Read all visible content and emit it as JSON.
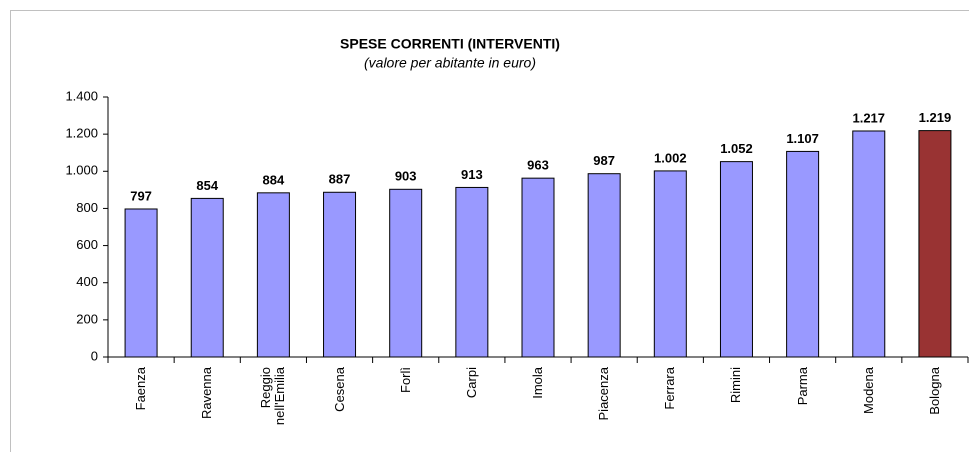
{
  "chart_data": {
    "type": "bar",
    "title": "SPESE CORRENTI (INTERVENTI)",
    "subtitle": "(valore per abitante in euro)",
    "categories": [
      "Faenza",
      "Ravenna",
      "Reggio nell'Emilia",
      "Cesena",
      "Forlì",
      "Carpi",
      "Imola",
      "Piacenza",
      "Ferrara",
      "Rimini",
      "Parma",
      "Modena",
      "Bologna"
    ],
    "values": [
      797,
      854,
      884,
      887,
      903,
      913,
      963,
      987,
      1002,
      1052,
      1107,
      1217,
      1219
    ],
    "value_labels": [
      "797",
      "854",
      "884",
      "887",
      "903",
      "913",
      "963",
      "987",
      "1.002",
      "1.052",
      "1.107",
      "1.217",
      "1.219"
    ],
    "colors": [
      "#9999ff",
      "#9999ff",
      "#9999ff",
      "#9999ff",
      "#9999ff",
      "#9999ff",
      "#9999ff",
      "#9999ff",
      "#9999ff",
      "#9999ff",
      "#9999ff",
      "#9999ff",
      "#993333"
    ],
    "ylim": [
      0,
      1400
    ],
    "yticks": [
      0,
      200,
      400,
      600,
      800,
      {
        "value": 1000,
        "label": "1.000"
      },
      {
        "value": 1200,
        "label": "1.200"
      },
      {
        "value": 1400,
        "label": "1.400"
      }
    ],
    "grid": false
  }
}
